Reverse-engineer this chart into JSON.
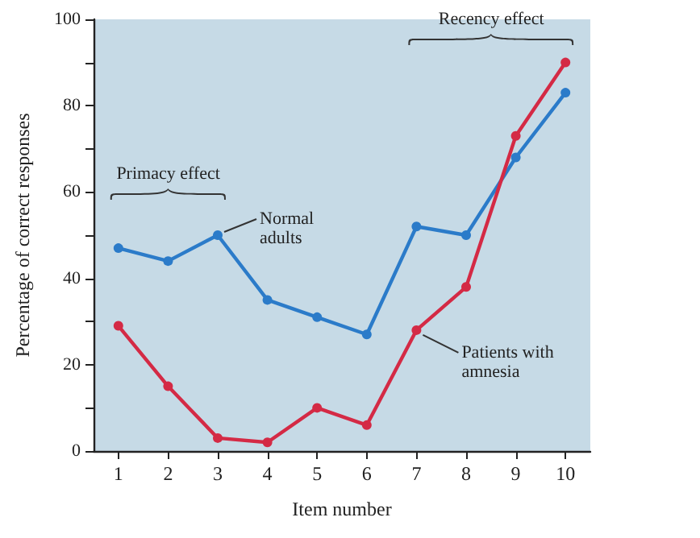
{
  "chart_data": {
    "type": "line",
    "xlabel": "Item number",
    "ylabel": "Percentage of correct responses",
    "categories": [
      "1",
      "2",
      "3",
      "4",
      "5",
      "6",
      "7",
      "8",
      "9",
      "10"
    ],
    "series": [
      {
        "name": "Normal adults",
        "color": "#2b7bc9",
        "values": [
          47,
          44,
          50,
          35,
          31,
          27,
          52,
          50,
          68,
          83
        ]
      },
      {
        "name": "Patients with amnesia",
        "color": "#d42a45",
        "values": [
          29,
          15,
          3,
          2,
          10,
          6,
          28,
          38,
          73,
          90
        ]
      }
    ],
    "ylim": [
      0,
      100
    ],
    "yticks": [
      0,
      {
        "value": 10,
        "label": null
      },
      20,
      {
        "value": 30,
        "label": null
      },
      40,
      {
        "value": 50,
        "label": null
      },
      60,
      {
        "value": 70,
        "label": null
      },
      80,
      {
        "value": 90,
        "label": null
      },
      100
    ],
    "annotations": [
      "Primacy effect",
      "Recency effect"
    ],
    "grid": false,
    "legend": false,
    "marker": "circle",
    "line_style": "solid"
  }
}
